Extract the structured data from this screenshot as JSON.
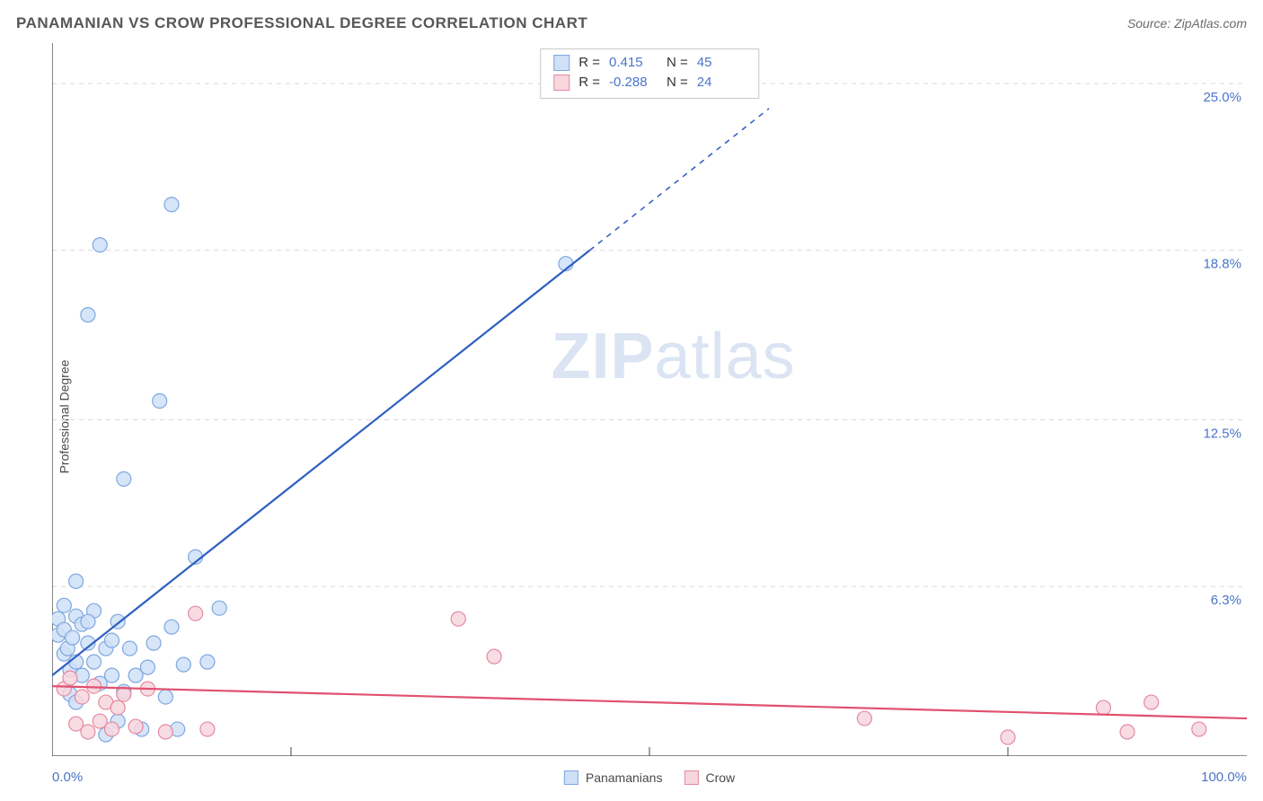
{
  "header": {
    "title": "PANAMANIAN VS CROW PROFESSIONAL DEGREE CORRELATION CHART",
    "source": "Source: ZipAtlas.com"
  },
  "ylabel": "Professional Degree",
  "watermark": {
    "bold": "ZIP",
    "rest": "atlas"
  },
  "chart": {
    "type": "scatter",
    "background_color": "#ffffff",
    "grid_color": "#d9d9d9",
    "axis_color": "#444444",
    "xlim": [
      0,
      100
    ],
    "ylim": [
      0,
      26.5
    ],
    "x_tick_positions": [
      20,
      50,
      80
    ],
    "y_ticks": [
      {
        "v": 25.0,
        "label": "25.0%"
      },
      {
        "v": 18.8,
        "label": "18.8%"
      },
      {
        "v": 12.5,
        "label": "12.5%"
      },
      {
        "v": 6.3,
        "label": "6.3%"
      }
    ],
    "xmin_label": "0.0%",
    "xmax_label": "100.0%",
    "ytick_color": "#4a74c9",
    "ytick_fontsize": 15,
    "marker_radius": 8,
    "marker_stroke_width": 1.2,
    "series": [
      {
        "name": "Panamanians",
        "fill": "#cfe0f7",
        "stroke": "#7fa7e0",
        "line_color": "#2e5fc1",
        "line_width": 2.2,
        "trend": {
          "x1": 0,
          "y1": 3.0,
          "x2": 45,
          "y2": 18.8,
          "dashed_extend_to_x": 60
        },
        "stats": {
          "R": "0.415",
          "N": "45"
        },
        "points": [
          [
            0.5,
            4.5
          ],
          [
            0.5,
            5.1
          ],
          [
            1.0,
            3.8
          ],
          [
            1.0,
            4.7
          ],
          [
            1.0,
            5.6
          ],
          [
            1.3,
            4.0
          ],
          [
            1.5,
            2.3
          ],
          [
            1.5,
            3.2
          ],
          [
            1.7,
            4.4
          ],
          [
            2.0,
            5.2
          ],
          [
            2.0,
            3.5
          ],
          [
            2.0,
            2.0
          ],
          [
            2.0,
            6.5
          ],
          [
            2.5,
            4.9
          ],
          [
            2.5,
            3.0
          ],
          [
            3.0,
            4.2
          ],
          [
            3.0,
            16.4
          ],
          [
            3.5,
            3.5
          ],
          [
            3.5,
            5.4
          ],
          [
            4.0,
            2.7
          ],
          [
            4.0,
            19.0
          ],
          [
            4.5,
            4.0
          ],
          [
            4.5,
            0.8
          ],
          [
            5.0,
            3.0
          ],
          [
            5.0,
            4.3
          ],
          [
            5.5,
            1.3
          ],
          [
            5.5,
            5.0
          ],
          [
            6.0,
            10.3
          ],
          [
            6.0,
            2.4
          ],
          [
            6.5,
            4.0
          ],
          [
            7.0,
            3.0
          ],
          [
            7.5,
            1.0
          ],
          [
            8.0,
            3.3
          ],
          [
            8.5,
            4.2
          ],
          [
            9.0,
            13.2
          ],
          [
            9.5,
            2.2
          ],
          [
            10.0,
            4.8
          ],
          [
            10.0,
            20.5
          ],
          [
            10.5,
            1.0
          ],
          [
            11.0,
            3.4
          ],
          [
            12.0,
            7.4
          ],
          [
            13.0,
            3.5
          ],
          [
            14.0,
            5.5
          ],
          [
            43.0,
            18.3
          ],
          [
            3.0,
            5.0
          ]
        ]
      },
      {
        "name": "Crow",
        "fill": "#f7d6de",
        "stroke": "#e48aa0",
        "line_color": "#e0516f",
        "line_width": 2.2,
        "trend": {
          "x1": 0,
          "y1": 2.6,
          "x2": 100,
          "y2": 1.4
        },
        "stats": {
          "R": "-0.288",
          "N": "24"
        },
        "points": [
          [
            1.0,
            2.5
          ],
          [
            1.5,
            2.9
          ],
          [
            2.0,
            1.2
          ],
          [
            2.5,
            2.2
          ],
          [
            3.0,
            0.9
          ],
          [
            3.5,
            2.6
          ],
          [
            4.0,
            1.3
          ],
          [
            4.5,
            2.0
          ],
          [
            5.0,
            1.0
          ],
          [
            5.5,
            1.8
          ],
          [
            6.0,
            2.3
          ],
          [
            7.0,
            1.1
          ],
          [
            8.0,
            2.5
          ],
          [
            9.5,
            0.9
          ],
          [
            12.0,
            5.3
          ],
          [
            13.0,
            1.0
          ],
          [
            34.0,
            5.1
          ],
          [
            37.0,
            3.7
          ],
          [
            68.0,
            1.4
          ],
          [
            80.0,
            0.7
          ],
          [
            88.0,
            1.8
          ],
          [
            90.0,
            0.9
          ],
          [
            92.0,
            2.0
          ],
          [
            96.0,
            1.0
          ]
        ]
      }
    ]
  },
  "bottom_legend": [
    {
      "label": "Panamanians",
      "fill": "#cfe0f7",
      "stroke": "#7fa7e0"
    },
    {
      "label": "Crow",
      "fill": "#f7d6de",
      "stroke": "#e48aa0"
    }
  ],
  "stats_box": {
    "R_label": "R  =",
    "N_label": "N  ="
  }
}
